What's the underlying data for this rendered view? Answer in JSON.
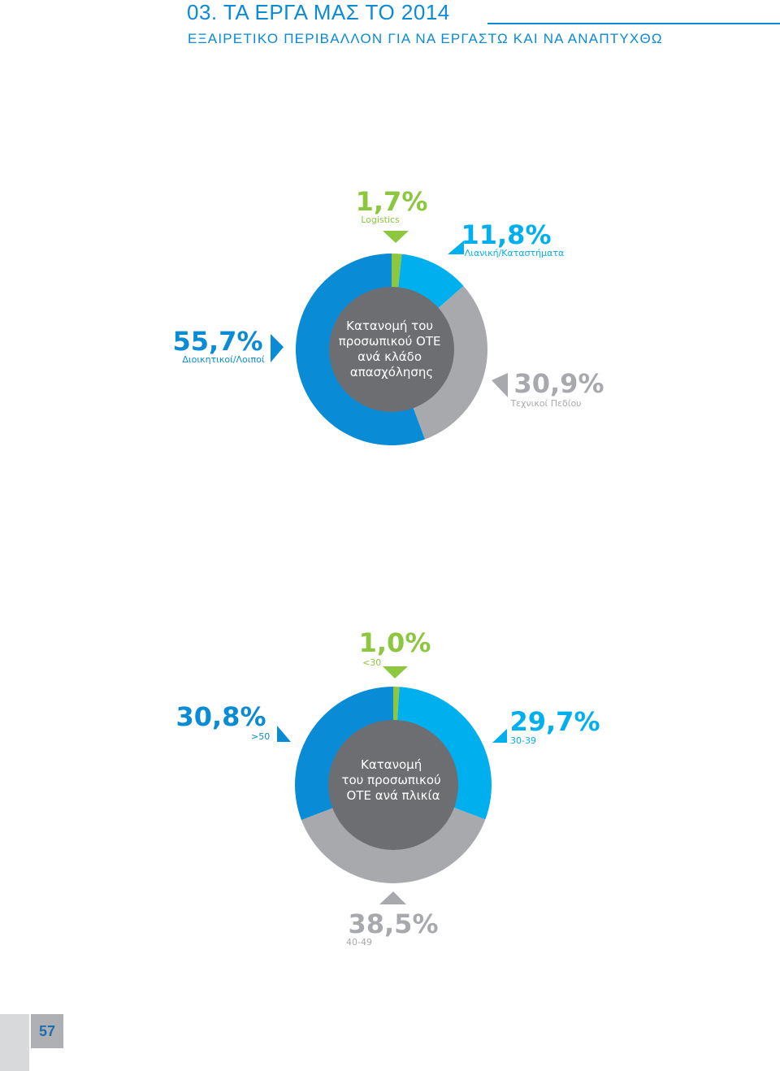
{
  "header": {
    "title": "03. ΤΑ ΕΡΓΑ ΜΑΣ ΤΟ 2014",
    "subtitle": "ΕΞΑΙΡΕΤΙΚΟ ΠΕΡΙΒΑΛΛΟΝ ΓΙΑ ΝΑ ΕΡΓΑΣΤΩ ΚΑΙ ΝΑ ΑΝΑΠΤΥΧΘΩ"
  },
  "page_number": "57",
  "colors": {
    "green": "#8dc63f",
    "light_blue": "#00b0ee",
    "gray": "#a7a9ac",
    "blue": "#0a8bd6",
    "center": "#6d6e71"
  },
  "chart_data": [
    {
      "type": "pie",
      "center_label": [
        "Κατανομή του",
        "προσωπικού ΟΤΕ",
        "ανά κλάδο",
        "απασχόλησης"
      ],
      "slices": [
        {
          "label": "Logistics",
          "value": 1.7,
          "value_text": "1,7%",
          "color": "#8dc63f"
        },
        {
          "label": "Λιανική/Καταστήματα",
          "value": 11.8,
          "value_text": "11,8%",
          "color": "#00b0ee"
        },
        {
          "label": "Τεχνικοί Πεδίου",
          "value": 30.9,
          "value_text": "30,9%",
          "color": "#a7a9ac"
        },
        {
          "label": "Διοικητικοί/Λοιποί",
          "value": 55.7,
          "value_text": "55,7%",
          "color": "#0a8bd6"
        }
      ]
    },
    {
      "type": "pie",
      "center_label": [
        "Κατανομή",
        "του προσωπικού",
        "ΟΤΕ ανά πλικία"
      ],
      "slices": [
        {
          "label": "<30",
          "value": 1.0,
          "value_text": "1,0%",
          "color": "#8dc63f"
        },
        {
          "label": "30-39",
          "value": 29.7,
          "value_text": "29,7%",
          "color": "#00b0ee"
        },
        {
          "label": "40-49",
          "value": 38.5,
          "value_text": "38,5%",
          "color": "#a7a9ac"
        },
        {
          "label": ">50",
          "value": 30.8,
          "value_text": "30,8%",
          "color": "#0a8bd6"
        }
      ]
    }
  ]
}
